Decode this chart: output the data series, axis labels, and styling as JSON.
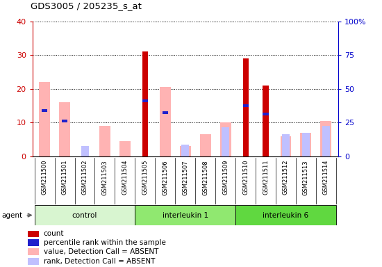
{
  "title": "GDS3005 / 205235_s_at",
  "samples": [
    "GSM211500",
    "GSM211501",
    "GSM211502",
    "GSM211503",
    "GSM211504",
    "GSM211505",
    "GSM211506",
    "GSM211507",
    "GSM211508",
    "GSM211509",
    "GSM211510",
    "GSM211511",
    "GSM211512",
    "GSM211513",
    "GSM211514"
  ],
  "groups": [
    {
      "label": "control",
      "start": 0,
      "end": 5
    },
    {
      "label": "interleukin 1",
      "start": 5,
      "end": 10
    },
    {
      "label": "interleukin 6",
      "start": 10,
      "end": 15
    }
  ],
  "group_colors": [
    "#d8f5d0",
    "#90e870",
    "#60d840"
  ],
  "count": [
    0,
    0,
    0,
    0,
    0,
    31,
    0,
    0,
    0,
    0,
    29,
    21,
    0,
    0,
    0
  ],
  "percentile": [
    13.5,
    10.5,
    0,
    0,
    0,
    16.5,
    13.0,
    0,
    0,
    0,
    15.0,
    12.5,
    0,
    0,
    0
  ],
  "value_absent": [
    22.0,
    16.0,
    0,
    9.0,
    4.5,
    0,
    20.5,
    3.0,
    6.5,
    10.0,
    0,
    0,
    6.0,
    7.0,
    10.5
  ],
  "rank_absent": [
    0,
    0,
    3.0,
    0,
    0,
    0,
    0,
    3.5,
    0,
    8.5,
    0,
    0,
    6.5,
    7.0,
    9.0
  ],
  "ylim_left": [
    0,
    40
  ],
  "ylim_right": [
    0,
    100
  ],
  "yticks_left": [
    0,
    10,
    20,
    30,
    40
  ],
  "yticks_right": [
    0,
    25,
    50,
    75,
    100
  ],
  "yticklabels_left": [
    "0",
    "10",
    "20",
    "30",
    "40"
  ],
  "yticklabels_right": [
    "0",
    "25",
    "50",
    "75",
    "100%"
  ],
  "left_tick_color": "#cc0000",
  "right_tick_color": "#0000cc",
  "count_color": "#cc0000",
  "percentile_color": "#2020cc",
  "value_absent_color": "#ffb3b3",
  "rank_absent_color": "#c0c0ff",
  "sample_bg": "#d0d0d0",
  "agent_label": "agent"
}
